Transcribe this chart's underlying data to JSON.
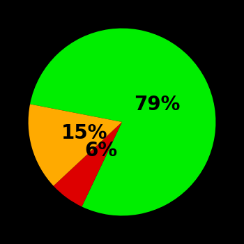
{
  "slices": [
    79,
    6,
    15
  ],
  "colors": [
    "#00ee00",
    "#dd0000",
    "#ffaa00"
  ],
  "labels": [
    "79%",
    "6%",
    "15%"
  ],
  "background_color": "#000000",
  "label_fontsize": 20,
  "label_color": "#000000",
  "startangle": 169,
  "figsize": [
    3.5,
    3.5
  ],
  "dpi": 100,
  "label_radii": [
    0.42,
    0.38,
    0.42
  ]
}
